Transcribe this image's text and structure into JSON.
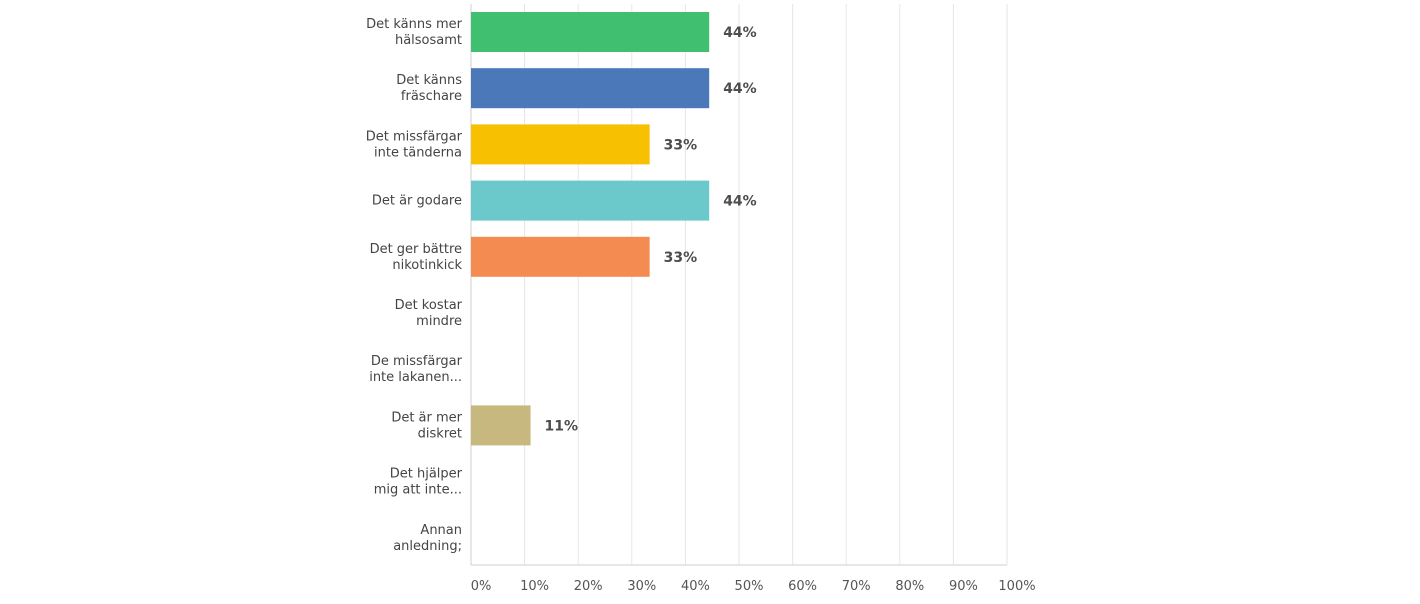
{
  "chart_data": {
    "type": "bar",
    "orientation": "horizontal",
    "categories": [
      [
        "Det känns mer",
        "hälsosamt"
      ],
      [
        "Det känns",
        "fräschare"
      ],
      [
        "Det missfärgar",
        "inte tänderna"
      ],
      [
        "Det är godare"
      ],
      [
        "Det ger bättre",
        "nikotinkick"
      ],
      [
        "Det kostar",
        "mindre"
      ],
      [
        "De missfärgar",
        "inte lakanen..."
      ],
      [
        "Det är mer",
        "diskret"
      ],
      [
        "Det hjälper",
        "mig att inte..."
      ],
      [
        "Annan",
        "anledning;"
      ]
    ],
    "values": [
      44.44,
      44.44,
      33.33,
      44.44,
      33.33,
      0,
      0,
      11.11,
      0,
      0
    ],
    "value_labels": [
      "44%",
      "44%",
      "33%",
      "44%",
      "33%",
      "",
      "",
      "11%",
      "",
      ""
    ],
    "bar_colors": [
      "#40bf70",
      "#4a78b8",
      "#f7c000",
      "#6bc9cc",
      "#f48c52",
      "#cccccc",
      "#cccccc",
      "#c6b87e",
      "#cccccc",
      "#cccccc"
    ],
    "xlim": [
      0,
      100
    ],
    "xticks": [
      "0%",
      "10%",
      "20%",
      "30%",
      "40%",
      "50%",
      "60%",
      "70%",
      "80%",
      "90%",
      "100%"
    ],
    "grid": true
  }
}
